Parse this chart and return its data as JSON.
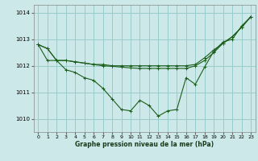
{
  "background_color": "#cce8e8",
  "grid_color": "#99cccc",
  "line_color": "#1a5e1a",
  "xlabel": "Graphe pression niveau de la mer (hPa)",
  "ylim": [
    1009.5,
    1014.3
  ],
  "xlim": [
    -0.5,
    23.5
  ],
  "yticks": [
    1010,
    1011,
    1012,
    1013,
    1014
  ],
  "xticks": [
    0,
    1,
    2,
    3,
    4,
    5,
    6,
    7,
    8,
    9,
    10,
    11,
    12,
    13,
    14,
    15,
    16,
    17,
    18,
    19,
    20,
    21,
    22,
    23
  ],
  "series0": [
    1012.8,
    1012.65,
    1012.2,
    1011.85,
    1011.75,
    1011.55,
    1011.45,
    1011.15,
    1010.75,
    1010.35,
    1010.3,
    1010.7,
    1010.5,
    1010.1,
    1010.3,
    1010.35,
    1011.55,
    1011.3,
    1011.95,
    1012.55,
    1012.9,
    1013.0,
    1013.5,
    1013.85
  ],
  "series1": [
    1012.8,
    1012.65,
    1012.2,
    1012.2,
    1012.15,
    1012.1,
    1012.05,
    1012.05,
    1012.0,
    1012.0,
    1012.0,
    1012.0,
    1012.0,
    1012.0,
    1012.0,
    1012.0,
    1012.0,
    1012.05,
    1012.3,
    1012.6,
    1012.85,
    1013.1,
    1013.45,
    1013.85
  ],
  "series2": [
    1012.8,
    1012.2,
    1012.2,
    1012.2,
    1012.15,
    1012.1,
    1012.05,
    1012.0,
    1011.98,
    1011.95,
    1011.92,
    1011.9,
    1011.9,
    1011.9,
    1011.9,
    1011.9,
    1011.9,
    1012.0,
    1012.2,
    1012.5,
    1012.85,
    1013.1,
    1013.45,
    1013.85
  ]
}
